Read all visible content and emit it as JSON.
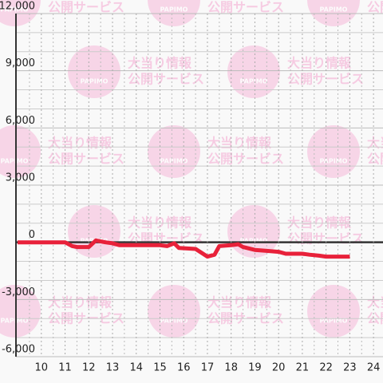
{
  "chart_data": {
    "type": "line",
    "x": [
      9,
      11,
      11.3,
      11.5,
      12,
      12.3,
      12.7,
      13,
      13.3,
      14,
      15,
      15.3,
      15.6,
      15.8,
      16.5,
      17,
      17.3,
      17.5,
      18,
      18.3,
      18.5,
      19,
      19.5,
      20,
      20.3,
      21,
      21.3,
      21.7,
      22,
      22.5,
      23
    ],
    "series": [
      {
        "color": "#e8213a",
        "values": [
          0,
          0,
          -200,
          -250,
          -250,
          100,
          0,
          -50,
          -150,
          -150,
          -150,
          -200,
          -50,
          -300,
          -350,
          -750,
          -650,
          -200,
          -150,
          -100,
          -250,
          -400,
          -450,
          -500,
          -600,
          -600,
          -650,
          -700,
          -750,
          -750,
          -750
        ]
      }
    ],
    "xlim": [
      8.93,
      24.4
    ],
    "xticks": [
      10,
      11,
      12,
      13,
      14,
      15,
      16,
      17,
      18,
      19,
      20,
      21,
      22,
      23,
      24
    ],
    "xminor": [
      9.5,
      10.5,
      11.5,
      12.5,
      13.5,
      14.5,
      15.5,
      16.5,
      17.5,
      18.5,
      19.5,
      20.5,
      21.5,
      22.5,
      23.5
    ],
    "ylim": [
      -6000,
      12000
    ],
    "yticks": [
      {
        "value": -6000,
        "label": "-6,000"
      },
      {
        "value": -3000,
        "label": "-3,000"
      },
      0,
      {
        "value": 3000,
        "label": "3,000"
      },
      {
        "value": 6000,
        "label": "6,000"
      },
      {
        "value": 9000,
        "label": "9,000"
      },
      {
        "value": 12000,
        "label": "12,000"
      }
    ],
    "yminor": [
      -5000,
      -4000,
      -2000,
      -1000,
      1000,
      2000,
      4000,
      5000,
      7000,
      8000,
      10000,
      11000
    ],
    "grid": true,
    "watermark": {
      "brand": "PAPIMO",
      "line1": "大当り情報",
      "line2": "公開サービス"
    }
  }
}
